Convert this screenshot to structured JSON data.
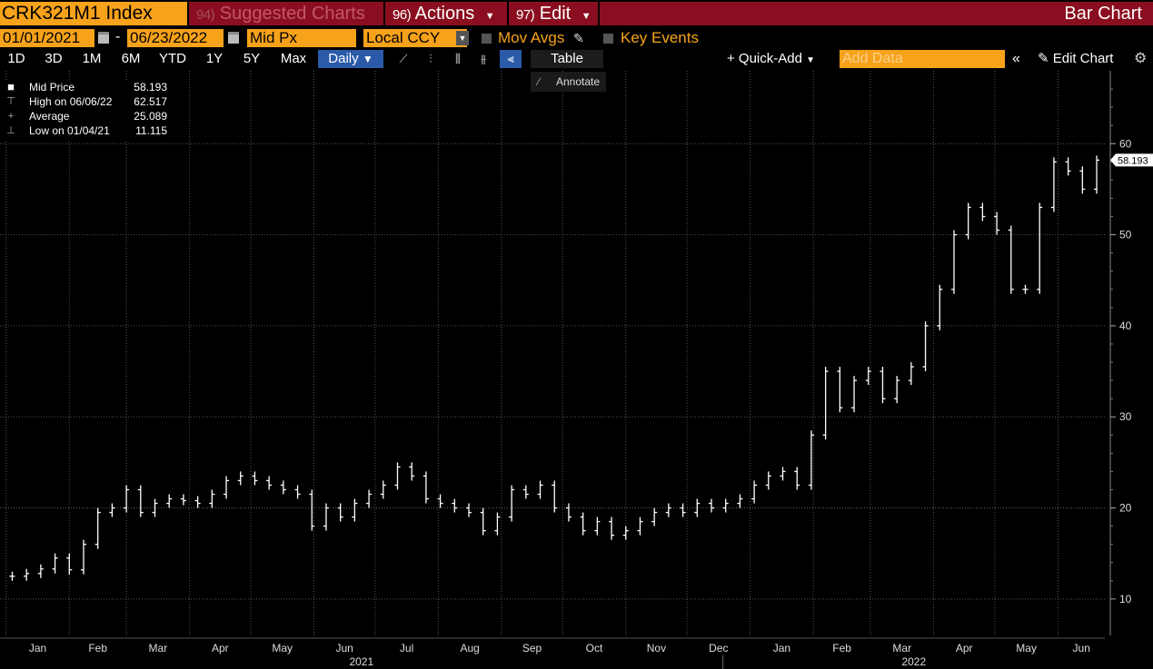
{
  "header": {
    "ticker": "CRK321M1 Index",
    "suggested_num": "94)",
    "suggested_label": "Suggested Charts",
    "actions_num": "96)",
    "actions_label": "Actions",
    "edit_num": "97)",
    "edit_label": "Edit",
    "chart_type_title": "Bar Chart"
  },
  "controls": {
    "start_date": "01/01/2021",
    "end_date": "06/23/2022",
    "separator": "-",
    "field": "Mid Px",
    "currency": "Local CCY",
    "mov_avgs": "Mov Avgs",
    "key_events": "Key Events"
  },
  "toolbar": {
    "periods": [
      "1D",
      "3D",
      "1M",
      "6M",
      "YTD",
      "1Y",
      "5Y",
      "Max"
    ],
    "frequency": "Daily",
    "table": "Table",
    "quick_add": "+ Quick-Add",
    "add_data_placeholder": "Add Data",
    "edit_chart": "Edit Chart",
    "annotate": "Annotate"
  },
  "legend": [
    {
      "symbol": "square",
      "name": "Mid Price",
      "value": "58.193"
    },
    {
      "symbol": "high-marker",
      "name": "High on 06/06/22",
      "value": "62.517"
    },
    {
      "symbol": "average-marker",
      "name": "Average",
      "value": "25.089"
    },
    {
      "symbol": "low-marker",
      "name": "Low on 01/04/21",
      "value": "11.115"
    }
  ],
  "colors": {
    "accent_orange": "#f7a21b",
    "title_red": "#8a0e1f",
    "selected_blue": "#2a5aa8",
    "bars": "#ffffff",
    "grid": "#555555"
  },
  "chart_data": {
    "type": "bar",
    "title": "",
    "xlabel": "",
    "ylabel": "",
    "ylim": [
      6,
      68
    ],
    "y_ticks": [
      10,
      20,
      30,
      40,
      50,
      60
    ],
    "x_month_labels": [
      "Jan",
      "Feb",
      "Mar",
      "Apr",
      "May",
      "Jun",
      "Jul",
      "Aug",
      "Sep",
      "Oct",
      "Nov",
      "Dec",
      "Jan",
      "Feb",
      "Mar",
      "Apr",
      "May",
      "Jun"
    ],
    "x_year_labels": [
      "2021",
      "2022"
    ],
    "last_value_label": "58.193",
    "last_value": 58.193,
    "grid": true,
    "series": [
      {
        "x": [
          "2021-01-04",
          "2021-01-11",
          "2021-01-18",
          "2021-01-25",
          "2021-02-01",
          "2021-02-08",
          "2021-02-15",
          "2021-02-22",
          "2021-03-01",
          "2021-03-08",
          "2021-03-15",
          "2021-03-22",
          "2021-03-29",
          "2021-04-05",
          "2021-04-12",
          "2021-04-19",
          "2021-04-26",
          "2021-05-03",
          "2021-05-10",
          "2021-05-17",
          "2021-05-24",
          "2021-05-31",
          "2021-06-07",
          "2021-06-14",
          "2021-06-21",
          "2021-06-28",
          "2021-07-05",
          "2021-07-12",
          "2021-07-19",
          "2021-07-26",
          "2021-08-02",
          "2021-08-09",
          "2021-08-16",
          "2021-08-23",
          "2021-08-30",
          "2021-09-06",
          "2021-09-13",
          "2021-09-20",
          "2021-09-27",
          "2021-10-04",
          "2021-10-11",
          "2021-10-18",
          "2021-10-25",
          "2021-11-01",
          "2021-11-08",
          "2021-11-15",
          "2021-11-22",
          "2021-11-29",
          "2021-12-06",
          "2021-12-13",
          "2021-12-20",
          "2021-12-27",
          "2022-01-03",
          "2022-01-10",
          "2022-01-17",
          "2022-01-24",
          "2022-01-31",
          "2022-02-07",
          "2022-02-14",
          "2022-02-21",
          "2022-02-28",
          "2022-03-07",
          "2022-03-14",
          "2022-03-21",
          "2022-03-28",
          "2022-04-04",
          "2022-04-11",
          "2022-04-18",
          "2022-04-25",
          "2022-05-02",
          "2022-05-09",
          "2022-05-16",
          "2022-05-23",
          "2022-05-30",
          "2022-06-06",
          "2022-06-13",
          "2022-06-20"
        ],
        "values": [
          12.5,
          12.8,
          13.3,
          14.5,
          13.2,
          16.0,
          19.5,
          20.0,
          22.0,
          19.5,
          20.5,
          21.0,
          20.8,
          20.5,
          21.5,
          23.0,
          23.5,
          23.0,
          22.5,
          22.0,
          21.5,
          18.0,
          20.0,
          19.0,
          20.5,
          21.5,
          22.5,
          24.5,
          23.5,
          21.0,
          20.5,
          20.0,
          19.5,
          17.5,
          19.0,
          22.0,
          21.5,
          22.5,
          20.0,
          19.0,
          17.5,
          18.5,
          17.0,
          17.5,
          18.5,
          19.5,
          20.0,
          19.5,
          20.5,
          20.0,
          20.5,
          21.0,
          22.5,
          23.5,
          24.0,
          22.5,
          28.0,
          35.0,
          31.0,
          34.0,
          35.0,
          32.0,
          34.0,
          35.5,
          40.0,
          44.0,
          50.0,
          53.0,
          52.0,
          50.5,
          44.0,
          44.0,
          53.0,
          58.0,
          57.0,
          55.0,
          58.193
        ]
      }
    ]
  }
}
